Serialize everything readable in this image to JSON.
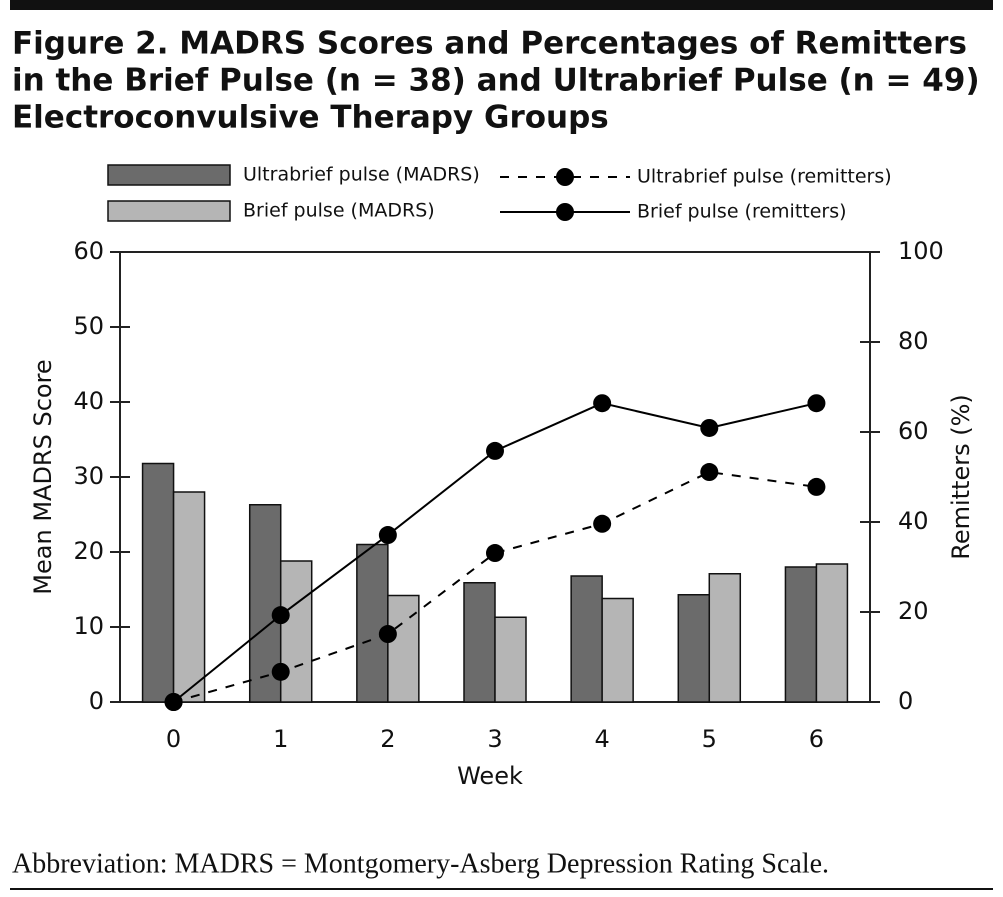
{
  "chart_data": {
    "type": "bar",
    "title": [
      "Figure 2. MADRS Scores and Percentages of Remitters",
      "in the Brief Pulse (n = 38) and Ultrabrief Pulse (n = 49)",
      "Electroconvulsive Therapy Groups"
    ],
    "x_label": "Week",
    "y_label": "Mean MADRS Score",
    "y2_label": "Remitters (%)",
    "categories": [
      "0",
      "1",
      "2",
      "3",
      "4",
      "5",
      "6"
    ],
    "ylim": [
      0,
      60
    ],
    "yticks": [
      0,
      10,
      20,
      30,
      40,
      50,
      60
    ],
    "y2lim": [
      0,
      100
    ],
    "y2ticks": [
      0,
      20,
      40,
      60,
      80,
      100
    ],
    "series": [
      {
        "name": "Ultrabrief pulse (MADRS)",
        "type": "bar",
        "color": "#6b6b6b",
        "values": [
          31.8,
          26.3,
          21.0,
          15.9,
          16.8,
          14.3,
          18.0
        ]
      },
      {
        "name": "Brief pulse (MADRS)",
        "type": "bar",
        "color": "#b5b5b5",
        "values": [
          28.0,
          18.8,
          14.2,
          11.3,
          13.8,
          17.1,
          18.4
        ]
      },
      {
        "name": "Ultrabrief pulse (remitters)",
        "type": "line",
        "axis": "y2",
        "line_style": "dotted",
        "color": "#000000",
        "values": [
          0,
          6.7,
          15.1,
          33.1,
          39.6,
          51.1,
          47.8
        ]
      },
      {
        "name": "Brief pulse (remitters)",
        "type": "line",
        "axis": "y2",
        "line_style": "solid",
        "color": "#000000",
        "values": [
          0,
          19.3,
          37.1,
          55.8,
          66.4,
          60.9,
          66.4
        ]
      }
    ],
    "footnote": "Abbreviation: MADRS = Montgomery-Asberg Depression Rating Scale."
  }
}
